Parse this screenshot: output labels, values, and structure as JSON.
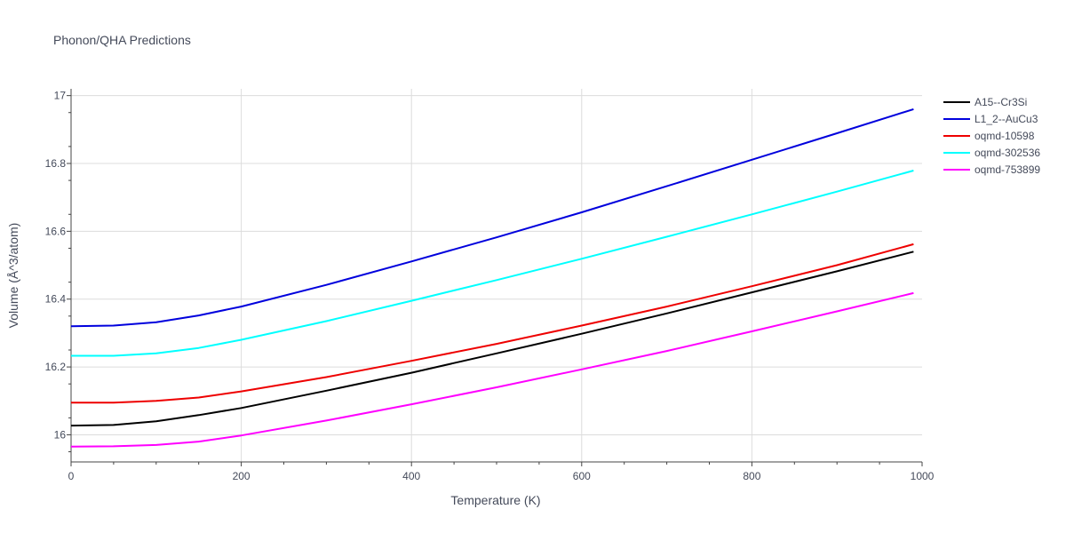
{
  "chart_data": {
    "type": "line",
    "title": "Phonon/QHA Predictions",
    "xlabel": "Temperature (K)",
    "ylabel": "Volume (Å^3/atom)",
    "xlim": [
      0,
      1000
    ],
    "ylim": [
      15.92,
      17.02
    ],
    "xticks": [
      0,
      200,
      400,
      600,
      800,
      1000
    ],
    "xtick_labels": [
      "0",
      "200",
      "400",
      "600",
      "800",
      "1000"
    ],
    "yticks": [
      16,
      16.2,
      16.4,
      16.6,
      16.8,
      17
    ],
    "ytick_labels": [
      "16",
      "16.2",
      "16.4",
      "16.6",
      "16.8",
      "17"
    ],
    "grid": true,
    "legend_position": "top-right",
    "x": [
      0,
      50,
      100,
      150,
      200,
      300,
      400,
      500,
      600,
      700,
      800,
      900,
      990
    ],
    "series": [
      {
        "name": "A15--Cr3Si",
        "color": "#000000",
        "values": [
          16.027,
          16.029,
          16.04,
          16.058,
          16.079,
          16.13,
          16.183,
          16.24,
          16.298,
          16.358,
          16.42,
          16.482,
          16.54
        ]
      },
      {
        "name": "L1_2--AuCu3",
        "color": "#0000dd",
        "values": [
          16.32,
          16.322,
          16.332,
          16.352,
          16.378,
          16.442,
          16.511,
          16.582,
          16.656,
          16.733,
          16.811,
          16.889,
          16.96
        ]
      },
      {
        "name": "oqmd-10598",
        "color": "#ee0000",
        "values": [
          16.095,
          16.095,
          16.1,
          16.11,
          16.128,
          16.17,
          16.218,
          16.268,
          16.322,
          16.378,
          16.438,
          16.5,
          16.562
        ]
      },
      {
        "name": "oqmd-302536",
        "color": "#00ffff",
        "values": [
          16.233,
          16.233,
          16.24,
          16.256,
          16.28,
          16.335,
          16.395,
          16.456,
          16.519,
          16.584,
          16.65,
          16.717,
          16.779
        ]
      },
      {
        "name": "oqmd-753899",
        "color": "#ff00ff",
        "values": [
          15.965,
          15.966,
          15.97,
          15.98,
          15.998,
          16.042,
          16.09,
          16.14,
          16.193,
          16.247,
          16.305,
          16.364,
          16.418
        ]
      }
    ]
  }
}
